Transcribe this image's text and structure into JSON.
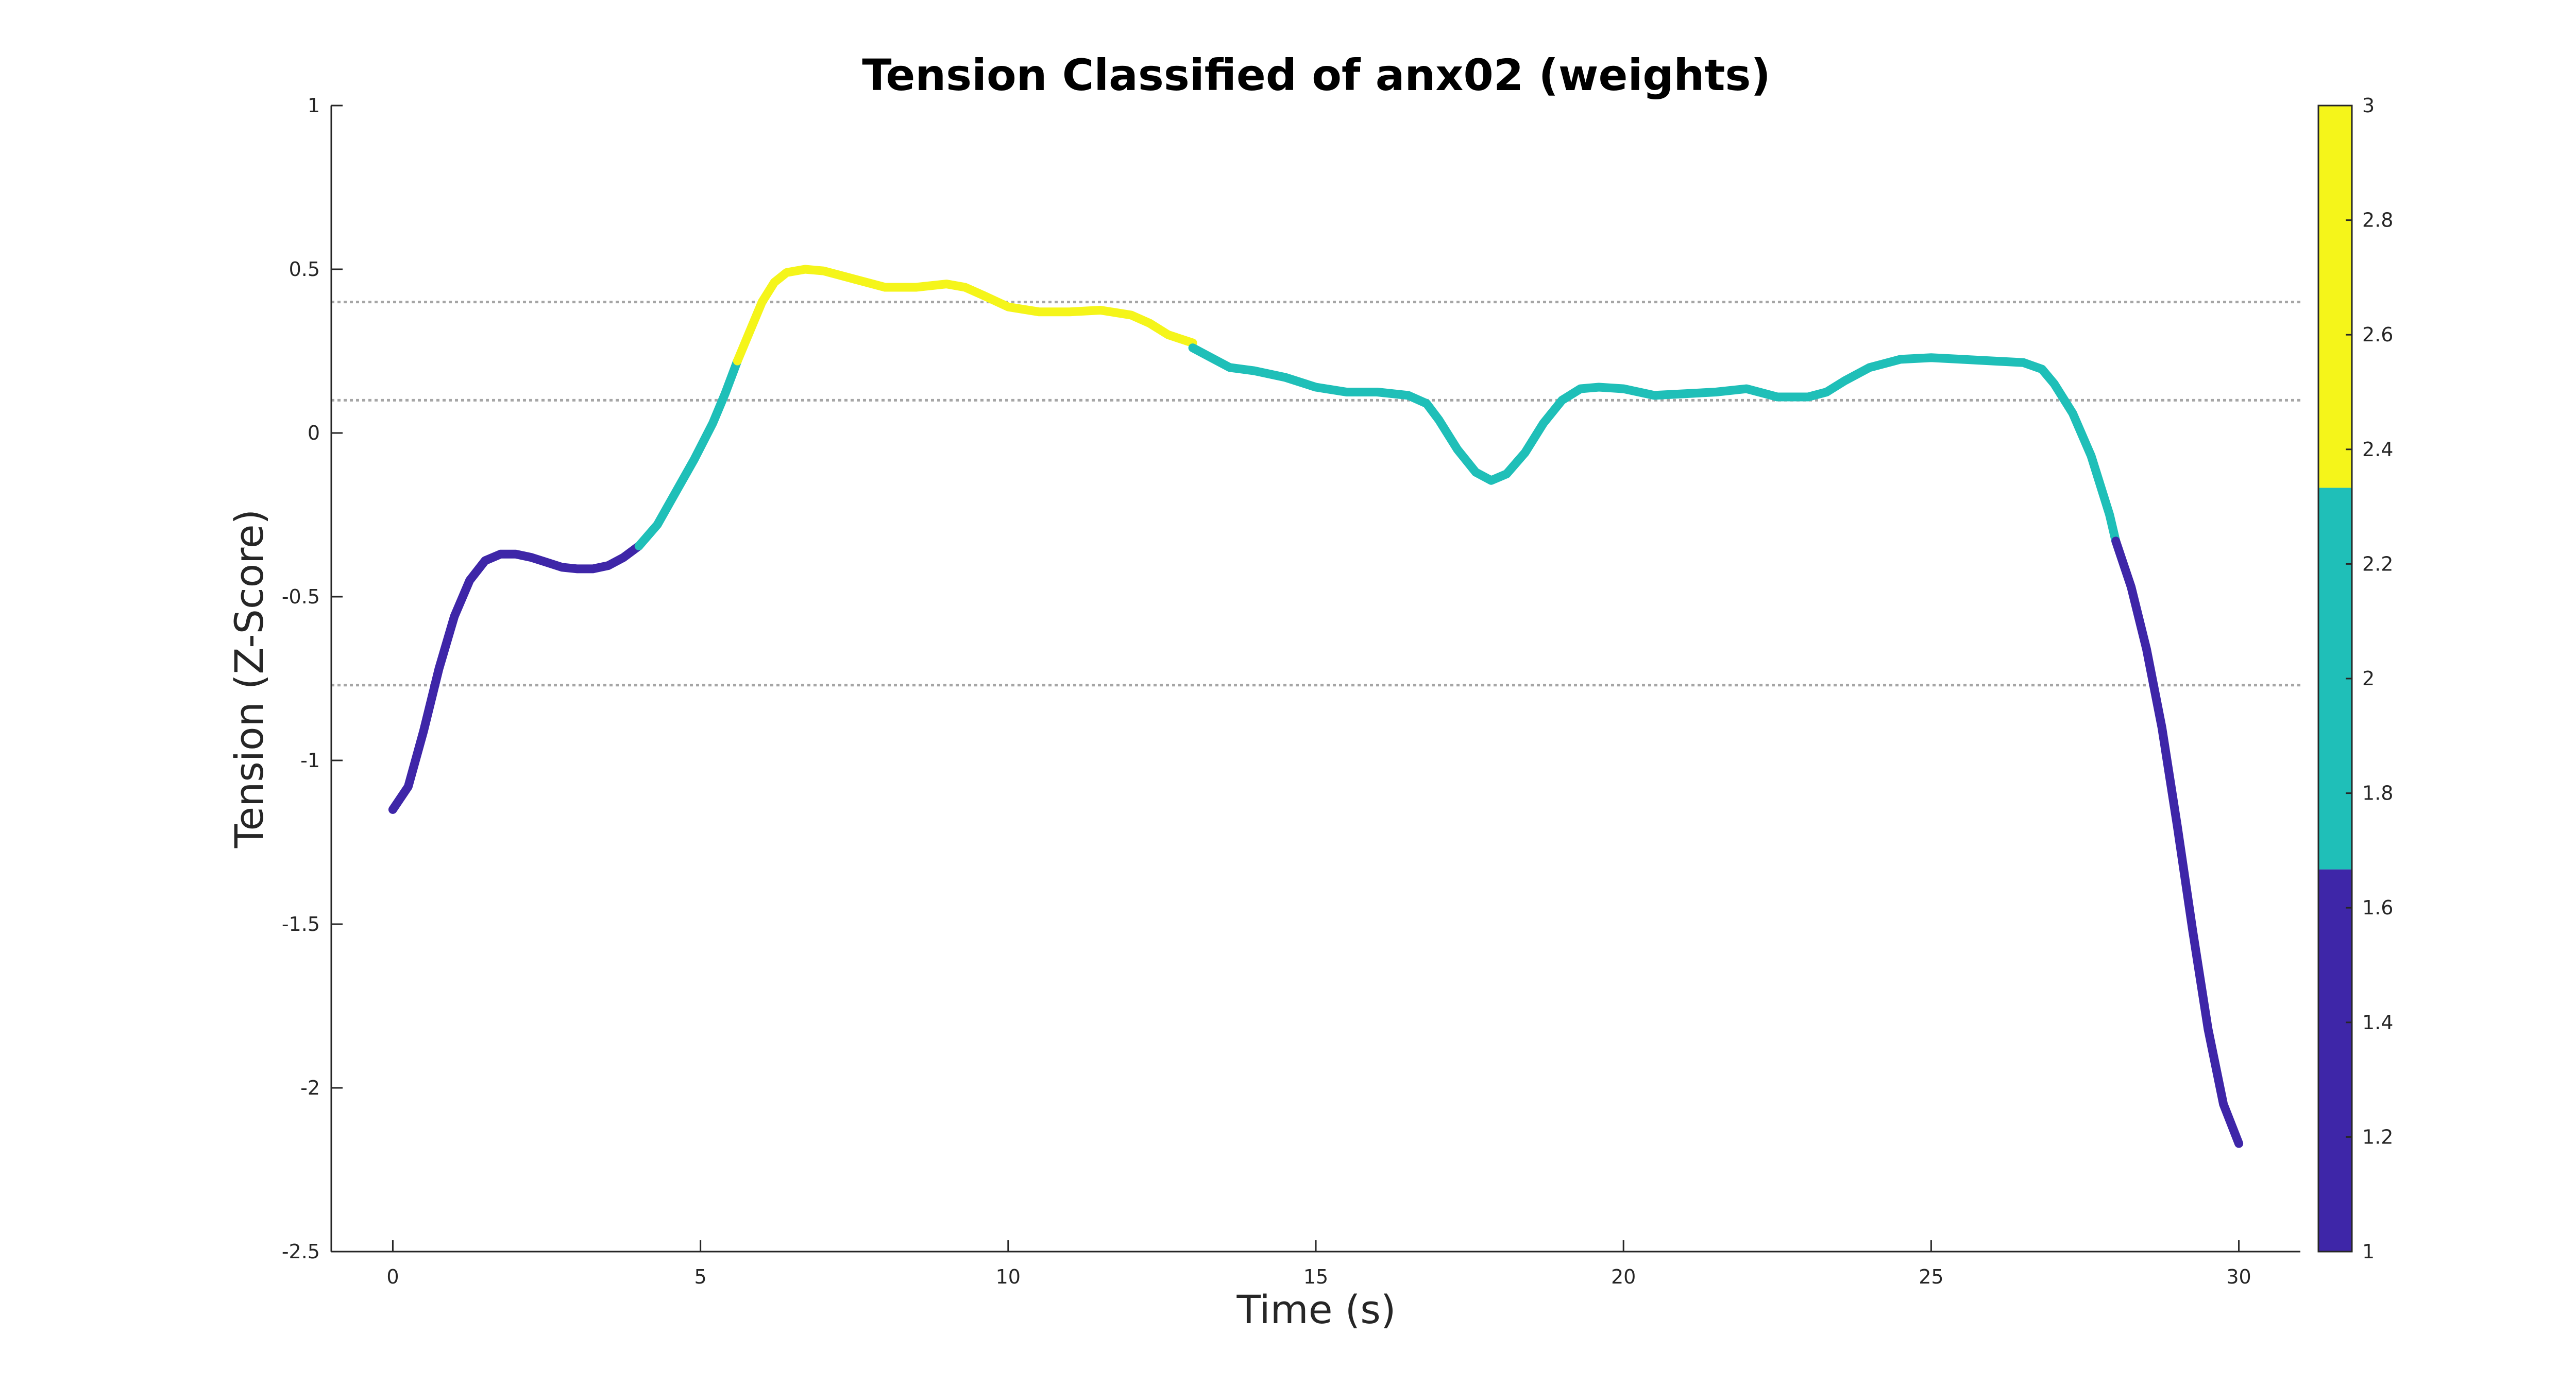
{
  "chart_data": {
    "type": "line",
    "title": "Tension Classified of anx02 (weights)",
    "xlabel": "Time (s)",
    "ylabel": "Tension (Z-Score)",
    "xlim": [
      -1,
      31
    ],
    "ylim": [
      -2.5,
      1
    ],
    "x_ticks": [
      0,
      5,
      10,
      15,
      20,
      25,
      30
    ],
    "y_ticks": [
      1,
      0.5,
      0,
      -0.5,
      -1,
      -1.5,
      -2,
      -2.5
    ],
    "thresholds": [
      0.4,
      0.1,
      -0.77
    ],
    "grid": false,
    "series": [
      {
        "class": 1,
        "color": "#3e26a8",
        "x": [
          0,
          0.25,
          0.5,
          0.75,
          1.0,
          1.25,
          1.5,
          1.75,
          2.0,
          2.25,
          2.5,
          2.75,
          3.0,
          3.25,
          3.5,
          3.75,
          4.0
        ],
        "y": [
          -1.15,
          -1.08,
          -0.91,
          -0.72,
          -0.56,
          -0.45,
          -0.39,
          -0.37,
          -0.37,
          -0.38,
          -0.395,
          -0.41,
          -0.415,
          -0.415,
          -0.405,
          -0.38,
          -0.345
        ]
      },
      {
        "class": 2,
        "color": "#1fbfb8",
        "x": [
          4.0,
          4.3,
          4.6,
          4.9,
          5.2,
          5.4,
          5.6
        ],
        "y": [
          -0.345,
          -0.28,
          -0.18,
          -0.08,
          0.03,
          0.12,
          0.22
        ]
      },
      {
        "class": 3,
        "color": "#f5f51a",
        "x": [
          5.6,
          5.8,
          6.0,
          6.2,
          6.4,
          6.7,
          7.0,
          7.5,
          8.0,
          8.5,
          9.0,
          9.3,
          9.6,
          10.0,
          10.5,
          11.0,
          11.5,
          12.0,
          12.3,
          12.6,
          13.0
        ],
        "y": [
          0.22,
          0.31,
          0.4,
          0.46,
          0.49,
          0.5,
          0.495,
          0.47,
          0.445,
          0.445,
          0.455,
          0.445,
          0.42,
          0.385,
          0.37,
          0.37,
          0.375,
          0.36,
          0.335,
          0.3,
          0.275
        ]
      },
      {
        "class": 2,
        "color": "#1fbfb8",
        "x": [
          13.0,
          13.3,
          13.6,
          14.0,
          14.5,
          15.0,
          15.5,
          16.0,
          16.5,
          16.8,
          17.0,
          17.3,
          17.6,
          17.85,
          18.1,
          18.4,
          18.7,
          19.0,
          19.3,
          19.6,
          20.0,
          20.5,
          21.0,
          21.5,
          22.0,
          22.5,
          23.0,
          23.3,
          23.6,
          24.0,
          24.5,
          25.0,
          25.5,
          26.0,
          26.5,
          26.8,
          27.0,
          27.3,
          27.6,
          27.9,
          28.0
        ],
        "y": [
          0.26,
          0.23,
          0.2,
          0.19,
          0.17,
          0.14,
          0.125,
          0.125,
          0.115,
          0.09,
          0.04,
          -0.05,
          -0.12,
          -0.145,
          -0.125,
          -0.06,
          0.03,
          0.1,
          0.135,
          0.14,
          0.135,
          0.115,
          0.12,
          0.125,
          0.135,
          0.11,
          0.11,
          0.125,
          0.16,
          0.2,
          0.225,
          0.23,
          0.225,
          0.22,
          0.215,
          0.195,
          0.15,
          0.06,
          -0.07,
          -0.25,
          -0.33
        ]
      },
      {
        "class": 1,
        "color": "#3e26a8",
        "x": [
          28.0,
          28.25,
          28.5,
          28.75,
          29.0,
          29.25,
          29.5,
          29.75,
          30.0
        ],
        "y": [
          -0.33,
          -0.47,
          -0.66,
          -0.9,
          -1.2,
          -1.52,
          -1.82,
          -2.05,
          -2.17
        ]
      }
    ],
    "colorbar": {
      "range": [
        1,
        3
      ],
      "ticks": [
        3,
        2.8,
        2.6,
        2.4,
        2.2,
        2,
        1.8,
        1.6,
        1.4,
        1.2,
        1
      ],
      "bands": [
        {
          "from": 1,
          "to": 1.667,
          "color": "#3e26a8"
        },
        {
          "from": 1.667,
          "to": 2.333,
          "color": "#1fbfb8"
        },
        {
          "from": 2.333,
          "to": 3,
          "color": "#f5f51a"
        }
      ]
    }
  }
}
